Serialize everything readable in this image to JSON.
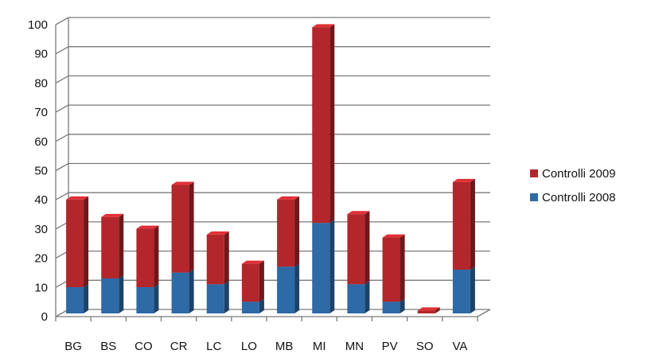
{
  "chart_data": {
    "type": "bar",
    "stacked": true,
    "three_d": true,
    "categories": [
      "BG",
      "BS",
      "CO",
      "CR",
      "LC",
      "LO",
      "MB",
      "MI",
      "MN",
      "PV",
      "SO",
      "VA"
    ],
    "series": [
      {
        "name": "Controlli 2008",
        "color": "#2e6aa6",
        "values": [
          9,
          12,
          9,
          14,
          10,
          4,
          16,
          31,
          10,
          4,
          0,
          15
        ]
      },
      {
        "name": "Controlli 2009",
        "color": "#b3262b",
        "values": [
          30,
          21,
          20,
          30,
          17,
          13,
          23,
          67,
          24,
          22,
          1,
          30
        ]
      }
    ],
    "ylim": [
      0,
      100
    ],
    "yticks": [
      0,
      10,
      20,
      30,
      40,
      50,
      60,
      70,
      80,
      90,
      100
    ],
    "grid": true,
    "legend_position": "right",
    "legend_order": [
      "Controlli 2009",
      "Controlli 2008"
    ]
  }
}
